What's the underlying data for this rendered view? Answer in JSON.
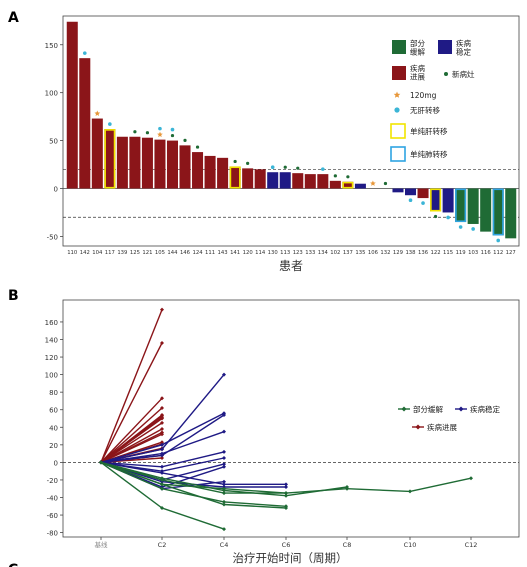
{
  "panel_labels": {
    "a": "A",
    "b": "B",
    "c": "C"
  },
  "colors": {
    "pr": "#1f6b35",
    "sd": "#1f1a85",
    "pd": "#8b1519",
    "orange": "#e7973a",
    "cyan": "#3bb5d6",
    "yellow_box": "#f1e400",
    "blue_box": "#2fa4e2",
    "dot": "#1f6b35"
  },
  "chart_data": [
    {
      "type": "bar",
      "title": "",
      "xlabel": "患者",
      "ylabel": "",
      "ylim": [
        -60,
        180
      ],
      "yticks": [
        -50,
        0,
        50,
        100,
        150
      ],
      "reference_lines": [
        20,
        -30
      ],
      "grid": false,
      "legend": {
        "placement": "top-right",
        "entries": [
          {
            "key": "pr",
            "label": "部分\n缓解",
            "marker": "square",
            "color": "#1f6b35"
          },
          {
            "key": "sd",
            "label": "疾病\n稳定",
            "marker": "square",
            "color": "#1f1a85"
          },
          {
            "key": "pd",
            "label": "疾病\n进展",
            "marker": "square",
            "color": "#8b1519"
          },
          {
            "key": "new_lesion",
            "label": "新病灶",
            "marker": "dot",
            "color": "#1f6b35"
          },
          {
            "key": "dose_120",
            "label": "120mg",
            "marker": "star",
            "color": "#e7973a"
          },
          {
            "key": "no_liver_met",
            "label": "无肝转移",
            "marker": "dot",
            "color": "#3bb5d6"
          },
          {
            "key": "liver_only",
            "label": "单纯肝转移",
            "marker": "box",
            "color": "#f1e400"
          },
          {
            "key": "lung_only",
            "label": "单纯肺转移",
            "marker": "box",
            "color": "#2fa4e2"
          }
        ]
      },
      "patients": [
        {
          "id": "110",
          "value": 174,
          "response": "pd"
        },
        {
          "id": "142",
          "value": 136,
          "response": "pd",
          "cyan": true
        },
        {
          "id": "104",
          "value": 73,
          "response": "pd",
          "orange": true
        },
        {
          "id": "117",
          "value": 62,
          "response": "pd",
          "cyan": true,
          "box": "yellow"
        },
        {
          "id": "139",
          "value": 54,
          "response": "pd"
        },
        {
          "id": "125",
          "value": 54,
          "response": "pd",
          "dot": true
        },
        {
          "id": "121",
          "value": 53,
          "response": "pd",
          "dot": true
        },
        {
          "id": "105",
          "value": 51,
          "response": "pd",
          "orange": true,
          "cyan": true
        },
        {
          "id": "144",
          "value": 50,
          "response": "pd",
          "cyan": true,
          "dot": true
        },
        {
          "id": "146",
          "value": 45,
          "response": "pd",
          "dot": true
        },
        {
          "id": "124",
          "value": 38,
          "response": "pd",
          "dot": true
        },
        {
          "id": "111",
          "value": 34,
          "response": "pd"
        },
        {
          "id": "143",
          "value": 32,
          "response": "pd"
        },
        {
          "id": "141",
          "value": 23,
          "response": "pd",
          "dot": true,
          "box": "yellow"
        },
        {
          "id": "120",
          "value": 21,
          "response": "pd",
          "dot": true
        },
        {
          "id": "114",
          "value": 20,
          "response": "pd"
        },
        {
          "id": "130",
          "value": 17,
          "response": "sd",
          "cyan": true
        },
        {
          "id": "113",
          "value": 17,
          "response": "sd",
          "dot": true
        },
        {
          "id": "123",
          "value": 16,
          "response": "pd",
          "dot": true
        },
        {
          "id": "133",
          "value": 15,
          "response": "pd"
        },
        {
          "id": "134",
          "value": 15,
          "response": "pd",
          "cyan": true
        },
        {
          "id": "102",
          "value": 8,
          "response": "pd",
          "dot": true
        },
        {
          "id": "137",
          "value": 7,
          "response": "pd",
          "dot": true,
          "box": "yellow"
        },
        {
          "id": "135",
          "value": 5,
          "response": "sd"
        },
        {
          "id": "106",
          "value": 0,
          "response": "sd",
          "orange": true
        },
        {
          "id": "132",
          "value": 0,
          "response": "sd",
          "dot": true
        },
        {
          "id": "129",
          "value": -4,
          "response": "sd"
        },
        {
          "id": "138",
          "value": -7,
          "response": "sd",
          "cyan": true
        },
        {
          "id": "136",
          "value": -10,
          "response": "pd",
          "cyan": true
        },
        {
          "id": "122",
          "value": -24,
          "response": "sd",
          "dot": true,
          "box": "yellow"
        },
        {
          "id": "115",
          "value": -25,
          "response": "sd",
          "cyan": true
        },
        {
          "id": "119",
          "value": -35,
          "response": "pr",
          "cyan": true,
          "box": "blue"
        },
        {
          "id": "103",
          "value": -37,
          "response": "pr",
          "cyan": true
        },
        {
          "id": "116",
          "value": -45,
          "response": "pr"
        },
        {
          "id": "112",
          "value": -49,
          "response": "pr",
          "cyan": true,
          "box": "blue"
        },
        {
          "id": "127",
          "value": -52,
          "response": "pr"
        }
      ]
    },
    {
      "type": "line",
      "title": "",
      "xlabel": "治疗开始时间（周期）",
      "ylabel": "",
      "x_categories": [
        "基线",
        "C2",
        "C4",
        "C6",
        "C8",
        "C10",
        "C12"
      ],
      "ylim": [
        -85,
        185
      ],
      "yticks": [
        -80,
        -60,
        -40,
        -20,
        0,
        20,
        40,
        60,
        80,
        100,
        120,
        140,
        160
      ],
      "reference_lines": [
        0
      ],
      "grid": false,
      "legend": {
        "placement": "right",
        "entries": [
          {
            "key": "pr",
            "label": "部分缓解",
            "color": "#1f6b35"
          },
          {
            "key": "sd",
            "label": "疾病稳定",
            "color": "#1f1a85"
          },
          {
            "key": "pd",
            "label": "疾病进展",
            "color": "#8b1519"
          }
        ]
      },
      "series": [
        {
          "response": "pd",
          "values": [
            0,
            174
          ]
        },
        {
          "response": "pd",
          "values": [
            0,
            136
          ]
        },
        {
          "response": "pd",
          "values": [
            0,
            73
          ]
        },
        {
          "response": "pd",
          "values": [
            0,
            62
          ]
        },
        {
          "response": "pd",
          "values": [
            0,
            54
          ]
        },
        {
          "response": "pd",
          "values": [
            0,
            53
          ]
        },
        {
          "response": "pd",
          "values": [
            0,
            51
          ]
        },
        {
          "response": "pd",
          "values": [
            0,
            50
          ]
        },
        {
          "response": "pd",
          "values": [
            0,
            45
          ]
        },
        {
          "response": "pd",
          "values": [
            0,
            38
          ]
        },
        {
          "response": "pd",
          "values": [
            0,
            34
          ]
        },
        {
          "response": "pd",
          "values": [
            0,
            32
          ]
        },
        {
          "response": "pd",
          "values": [
            0,
            23
          ]
        },
        {
          "response": "pd",
          "values": [
            0,
            21
          ]
        },
        {
          "response": "pd",
          "values": [
            0,
            16
          ]
        },
        {
          "response": "pd",
          "values": [
            0,
            15
          ]
        },
        {
          "response": "pd",
          "values": [
            0,
            8
          ]
        },
        {
          "response": "pd",
          "values": [
            0,
            5
          ]
        },
        {
          "response": "sd",
          "values": [
            0,
            15,
            100
          ]
        },
        {
          "response": "sd",
          "values": [
            0,
            20,
            56
          ]
        },
        {
          "response": "sd",
          "values": [
            0,
            8,
            54
          ]
        },
        {
          "response": "sd",
          "values": [
            0,
            10,
            35
          ]
        },
        {
          "response": "sd",
          "values": [
            0,
            -5,
            12
          ]
        },
        {
          "response": "sd",
          "values": [
            0,
            -10,
            5
          ]
        },
        {
          "response": "sd",
          "values": [
            0,
            -20,
            -2
          ]
        },
        {
          "response": "sd",
          "values": [
            0,
            -28,
            -5
          ]
        },
        {
          "response": "sd",
          "values": [
            0,
            -12,
            -25,
            -25
          ]
        },
        {
          "response": "sd",
          "values": [
            0,
            -22,
            -28,
            -28
          ]
        },
        {
          "response": "sd",
          "values": [
            0,
            -30,
            -22
          ]
        },
        {
          "response": "pr",
          "values": [
            0,
            -52,
            -76
          ]
        },
        {
          "response": "pr",
          "values": [
            0,
            -30,
            -45,
            -50
          ]
        },
        {
          "response": "pr",
          "values": [
            0,
            -25,
            -48,
            -52
          ]
        },
        {
          "response": "pr",
          "values": [
            0,
            -25,
            -30,
            -35,
            -30,
            -33,
            -18
          ]
        },
        {
          "response": "pr",
          "values": [
            0,
            -18,
            -32,
            -38,
            -28
          ]
        },
        {
          "response": "pr",
          "values": [
            0,
            -20,
            -35,
            -35
          ]
        }
      ]
    }
  ]
}
